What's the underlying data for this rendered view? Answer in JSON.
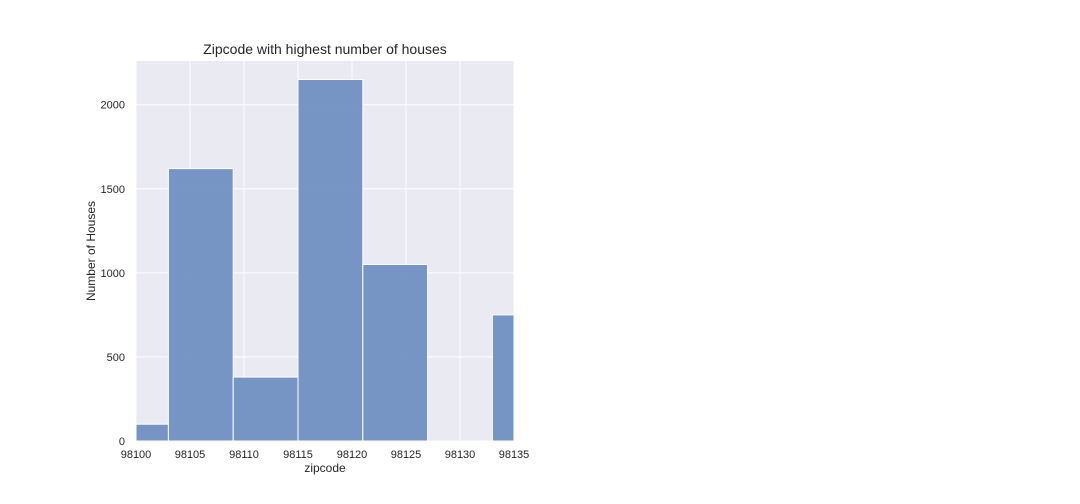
{
  "chart_data": {
    "type": "bar",
    "title": "Zipcode with highest number of houses",
    "xlabel": "zipcode",
    "ylabel": "Number of Houses",
    "xlim": [
      98100,
      98135
    ],
    "ylim": [
      0,
      2260
    ],
    "xticks": [
      98100,
      98105,
      98110,
      98115,
      98120,
      98125,
      98130,
      98135
    ],
    "yticks": [
      0,
      500,
      1000,
      1500,
      2000
    ],
    "bins": [
      {
        "x0": 98100,
        "x1": 98103,
        "value": 100
      },
      {
        "x0": 98103,
        "x1": 98109,
        "value": 1620
      },
      {
        "x0": 98109,
        "x1": 98115,
        "value": 380
      },
      {
        "x0": 98115,
        "x1": 98121,
        "value": 2150
      },
      {
        "x0": 98121,
        "x1": 98127,
        "value": 1050
      },
      {
        "x0": 98127,
        "x1": 98133,
        "value": 0
      },
      {
        "x0": 98133,
        "x1": 98135,
        "value": 750
      }
    ],
    "grid": true,
    "colors": {
      "bar": "#6b8cc0",
      "bar_edge": "#ffffff",
      "plot_bg": "#eaeaf2",
      "grid": "#ffffff"
    }
  }
}
